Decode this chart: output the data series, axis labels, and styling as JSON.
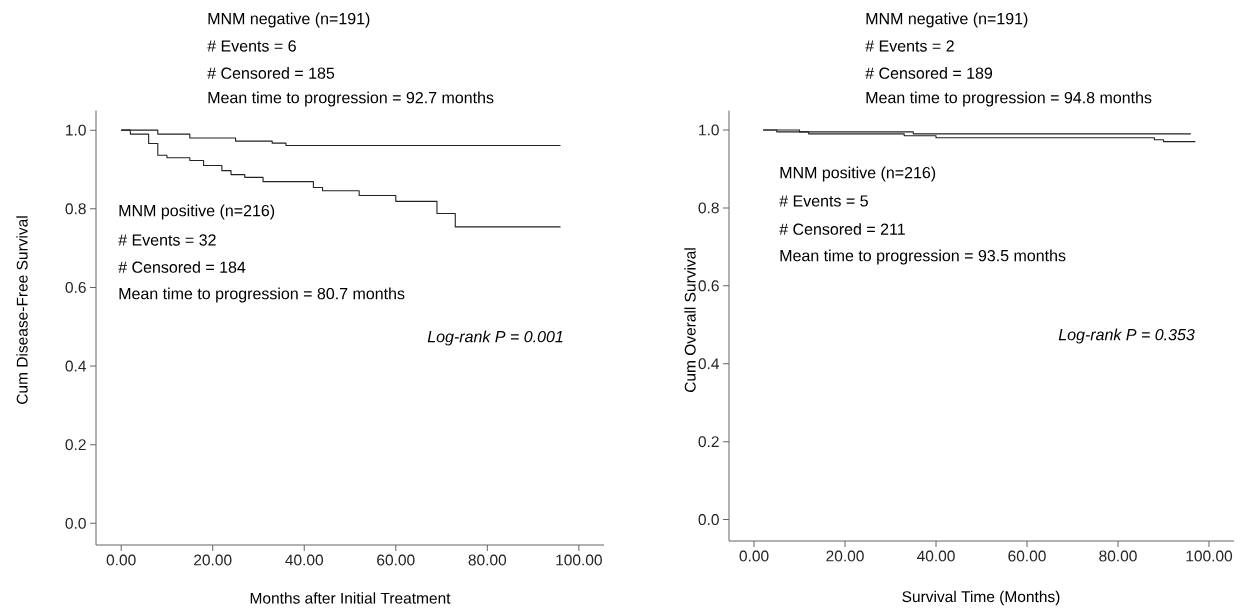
{
  "chart_data": [
    {
      "type": "step",
      "xlabel": "Months after Initial Treatment",
      "ylabel": "Cum Disease-Free Survival",
      "xlim": [
        -5.5,
        105.5
      ],
      "ylim": [
        -0.055,
        1.05
      ],
      "xticks": [
        {
          "value": 0,
          "label": "0.00"
        },
        {
          "value": 20,
          "label": "20.00"
        },
        {
          "value": 40,
          "label": "40.00"
        },
        {
          "value": 60,
          "label": "60.00"
        },
        {
          "value": 80,
          "label": "80.00"
        },
        {
          "value": 100,
          "label": "100.00"
        }
      ],
      "yticks": [
        {
          "value": 0,
          "label": "0.0"
        },
        {
          "value": 0.2,
          "label": "0.2"
        },
        {
          "value": 0.4,
          "label": "0.4"
        },
        {
          "value": 0.6,
          "label": "0.6"
        },
        {
          "value": 0.8,
          "label": "0.8"
        },
        {
          "value": 1,
          "label": "1.0"
        }
      ],
      "series": [
        {
          "color": "#222222",
          "x": [
            0,
            8,
            15,
            25,
            33,
            36,
            96
          ],
          "values": [
            1.0,
            0.99,
            0.98,
            0.972,
            0.967,
            0.961,
            0.961
          ]
        },
        {
          "color": "#222222",
          "x": [
            0,
            2,
            6,
            8,
            10,
            15,
            18,
            22,
            24,
            27,
            31,
            42,
            44,
            52,
            60,
            69,
            73,
            96
          ],
          "values": [
            1.0,
            0.99,
            0.966,
            0.936,
            0.93,
            0.923,
            0.91,
            0.897,
            0.887,
            0.88,
            0.869,
            0.854,
            0.846,
            0.834,
            0.819,
            0.788,
            0.754,
            0.754
          ]
        }
      ],
      "annotations": [
        "MNM negative (n=191)",
        "# Events = 6",
        "# Censored = 185",
        "Mean time to progression = 92.7 months",
        "MNM positive (n=216)",
        "# Events = 32",
        "# Censored = 184",
        "Mean time to progression = 80.7 months",
        "Log-rank P = 0.001"
      ]
    },
    {
      "type": "step",
      "xlabel": "Survival Time (Months)",
      "ylabel": "Cum Overall Survival",
      "xlim": [
        -5.5,
        105.5
      ],
      "ylim": [
        -0.055,
        1.05
      ],
      "xticks": [
        {
          "value": 0,
          "label": "0.00"
        },
        {
          "value": 20,
          "label": "20.00"
        },
        {
          "value": 40,
          "label": "40.00"
        },
        {
          "value": 60,
          "label": "60.00"
        },
        {
          "value": 80,
          "label": "80.00"
        },
        {
          "value": 100,
          "label": "100.00"
        }
      ],
      "yticks": [
        {
          "value": 0,
          "label": "0.0"
        },
        {
          "value": 0.2,
          "label": "0.2"
        },
        {
          "value": 0.4,
          "label": "0.4"
        },
        {
          "value": 0.6,
          "label": "0.6"
        },
        {
          "value": 0.8,
          "label": "0.8"
        },
        {
          "value": 1,
          "label": "1.0"
        }
      ],
      "series": [
        {
          "color": "#222222",
          "x": [
            2,
            10,
            35,
            96
          ],
          "values": [
            1.0,
            0.995,
            0.99,
            0.99
          ]
        },
        {
          "color": "#222222",
          "x": [
            2,
            5,
            12,
            33,
            40,
            88,
            90,
            97
          ],
          "values": [
            1.0,
            0.995,
            0.99,
            0.985,
            0.98,
            0.975,
            0.97,
            0.97
          ]
        }
      ],
      "annotations": [
        "MNM negative (n=191)",
        "# Events = 2",
        "# Censored = 189",
        "Mean time to progression = 94.8 months",
        "MNM positive (n=216)",
        "# Events = 5",
        "# Censored = 211",
        "Mean time to progression = 93.5 months",
        "Log-rank P = 0.353"
      ]
    }
  ]
}
